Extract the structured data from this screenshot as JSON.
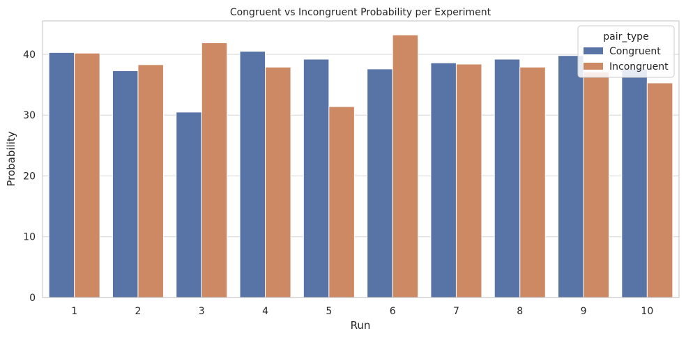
{
  "chart_data": {
    "type": "bar",
    "title": "Congruent vs Incongruent Probability per Experiment",
    "xlabel": "Run",
    "ylabel": "Probability",
    "categories": [
      "1",
      "2",
      "3",
      "4",
      "5",
      "6",
      "7",
      "8",
      "9",
      "10"
    ],
    "yticks": [
      "0",
      "10",
      "20",
      "30",
      "40"
    ],
    "ylim": [
      0,
      45.5
    ],
    "grid": "y",
    "legend": {
      "title": "pair_type",
      "position": "top-right"
    },
    "series": [
      {
        "name": "Congruent",
        "color": "#5874a6",
        "values": [
          40.3,
          37.3,
          30.5,
          40.5,
          39.2,
          37.6,
          38.6,
          39.2,
          39.8,
          37.6
        ]
      },
      {
        "name": "Incongruent",
        "color": "#cc8963",
        "values": [
          40.2,
          38.3,
          41.9,
          37.9,
          31.4,
          43.2,
          38.4,
          37.9,
          37.1,
          35.3
        ]
      }
    ]
  }
}
